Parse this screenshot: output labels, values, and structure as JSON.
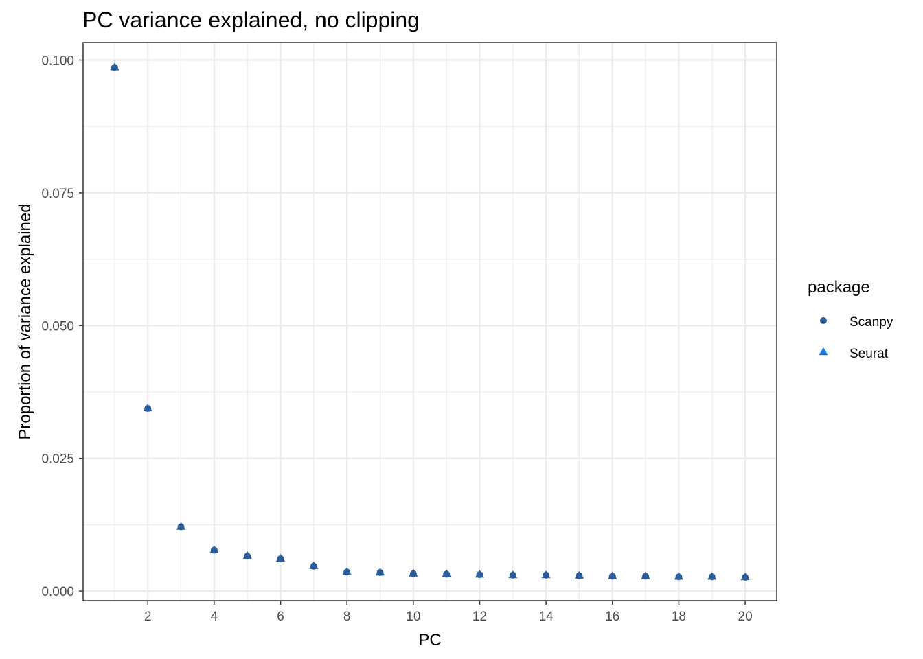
{
  "chart_data": {
    "type": "scatter",
    "title": "PC variance explained, no clipping",
    "xlabel": "PC",
    "ylabel": "Proportion of variance explained",
    "xlim": [
      0.05,
      20.95
    ],
    "ylim": [
      -0.0018,
      0.1033
    ],
    "x_ticks": [
      2,
      4,
      6,
      8,
      10,
      12,
      14,
      16,
      18,
      20
    ],
    "x_tick_labels": [
      "2",
      "4",
      "6",
      "8",
      "10",
      "12",
      "14",
      "16",
      "18",
      "20"
    ],
    "y_ticks": [
      0.0,
      0.025,
      0.05,
      0.075,
      0.1
    ],
    "y_tick_labels": [
      "0.000",
      "0.025",
      "0.050",
      "0.075",
      "0.100"
    ],
    "grid": true,
    "legend": {
      "title": "package",
      "placement": "right"
    },
    "x": [
      1,
      2,
      3,
      4,
      5,
      6,
      7,
      8,
      9,
      10,
      11,
      12,
      13,
      14,
      15,
      16,
      17,
      18,
      19,
      20
    ],
    "series": [
      {
        "name": "Scanpy",
        "marker": "circle",
        "color": "#2a5d9a",
        "values": [
          0.0986,
          0.0344,
          0.0121,
          0.0077,
          0.0066,
          0.0061,
          0.0047,
          0.0036,
          0.0035,
          0.0033,
          0.0032,
          0.0031,
          0.003,
          0.003,
          0.0029,
          0.0028,
          0.0028,
          0.0027,
          0.0027,
          0.0026
        ]
      },
      {
        "name": "Seurat",
        "marker": "triangle",
        "color": "#2a5d9a",
        "legend_color": "#1f78d4",
        "values": [
          0.0986,
          0.0344,
          0.0121,
          0.0077,
          0.0066,
          0.0061,
          0.0047,
          0.0036,
          0.0035,
          0.0033,
          0.0032,
          0.0031,
          0.003,
          0.003,
          0.0029,
          0.0028,
          0.0028,
          0.0027,
          0.0027,
          0.0026
        ]
      }
    ]
  }
}
